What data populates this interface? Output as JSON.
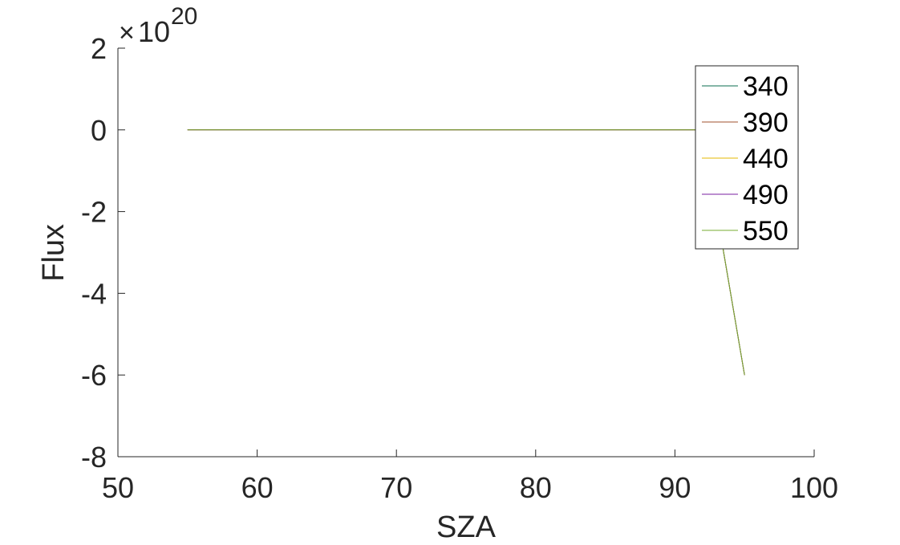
{
  "chart_data": {
    "type": "line",
    "title": "",
    "xlabel": "SZA",
    "ylabel": "Flux",
    "xlim": [
      50,
      100
    ],
    "ylim": [
      -8e+20,
      2e+20
    ],
    "x_ticks": [
      50,
      60,
      70,
      80,
      90,
      100
    ],
    "x_tick_labels": [
      "50",
      "60",
      "70",
      "80",
      "90",
      "100"
    ],
    "y_ticks": [
      -8e+20,
      -6e+20,
      -4e+20,
      -2e+20,
      0,
      2e+20
    ],
    "y_tick_labels": [
      "-8",
      "-6",
      "-4",
      "-2",
      "0",
      "2"
    ],
    "y_exponent": {
      "base": "10",
      "power": "20"
    },
    "grid": false,
    "legend_position": "top-right",
    "x": [
      55,
      90,
      92,
      95
    ],
    "series": [
      {
        "name": "340",
        "color": "#0b6e4f",
        "values": [
          0,
          0,
          0,
          -6e+20
        ]
      },
      {
        "name": "390",
        "color": "#a0522d",
        "values": [
          0,
          0,
          0,
          -6e+20
        ]
      },
      {
        "name": "440",
        "color": "#e6b800",
        "values": [
          0,
          0,
          0,
          -6e+20
        ]
      },
      {
        "name": "490",
        "color": "#7a1fa2",
        "values": [
          0,
          0,
          0,
          -6e+20
        ]
      },
      {
        "name": "550",
        "color": "#77ac30",
        "values": [
          0,
          0,
          0,
          -6e+20
        ]
      }
    ]
  }
}
